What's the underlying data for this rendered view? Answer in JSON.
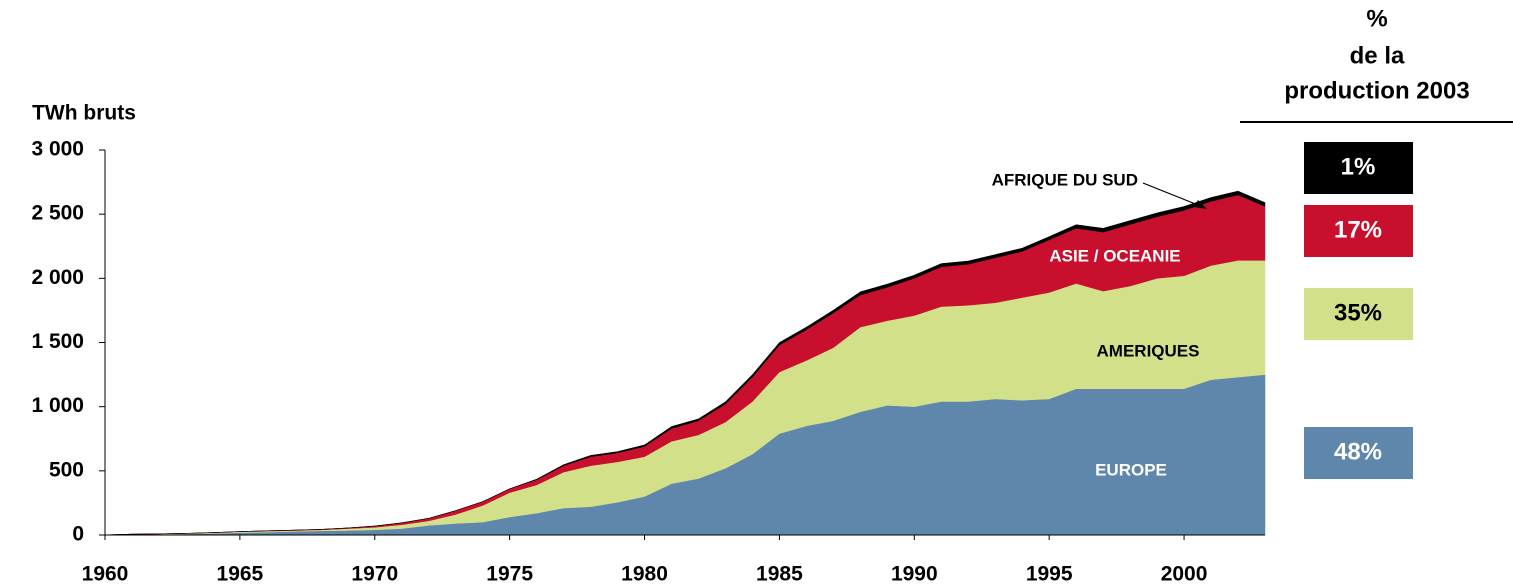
{
  "chart_data": {
    "type": "stacked_area",
    "y_axis_title": "TWh bruts",
    "x": [
      1960,
      1961,
      1962,
      1963,
      1964,
      1965,
      1966,
      1967,
      1968,
      1969,
      1970,
      1971,
      1972,
      1973,
      1974,
      1975,
      1976,
      1977,
      1978,
      1979,
      1980,
      1981,
      1982,
      1983,
      1984,
      1985,
      1986,
      1987,
      1988,
      1989,
      1990,
      1991,
      1992,
      1993,
      1994,
      1995,
      1996,
      1997,
      1998,
      1999,
      2000,
      2001,
      2002,
      2003
    ],
    "xlim": [
      1960,
      2003
    ],
    "xticks": [
      1960,
      1965,
      1970,
      1975,
      1980,
      1985,
      1990,
      1995,
      2000
    ],
    "ylim": [
      0,
      3000
    ],
    "yticks": [
      0,
      500,
      {
        "value": 1000,
        "label": "1 000"
      },
      {
        "value": 1500,
        "label": "1 500"
      },
      {
        "value": 2000,
        "label": "2 000"
      },
      {
        "value": 2500,
        "label": "2 500"
      },
      {
        "value": 3000,
        "label": "3 000"
      }
    ],
    "series": [
      {
        "name": "EUROPE",
        "color": "#5f86ab",
        "values": [
          0,
          2,
          5,
          8,
          12,
          18,
          22,
          28,
          32,
          35,
          40,
          50,
          75,
          90,
          100,
          140,
          170,
          210,
          220,
          255,
          300,
          400,
          440,
          520,
          630,
          790,
          850,
          890,
          960,
          1010,
          1000,
          1040,
          1040,
          1060,
          1050,
          1060,
          1140,
          1140,
          1140,
          1140,
          1140,
          1210,
          1230,
          1250
        ]
      },
      {
        "name": "AMERIQUES",
        "color": "#d3e08a",
        "values": [
          1,
          3,
          3,
          4,
          5,
          7,
          8,
          7,
          8,
          15,
          20,
          30,
          35,
          70,
          130,
          190,
          220,
          280,
          320,
          315,
          310,
          330,
          340,
          360,
          410,
          480,
          510,
          570,
          660,
          660,
          710,
          740,
          750,
          750,
          800,
          830,
          820,
          760,
          800,
          860,
          880,
          890,
          910,
          890
        ]
      },
      {
        "name": "ASIE / OCEANIE",
        "color": "#c8102e",
        "values": [
          0,
          2,
          1,
          1,
          2,
          2,
          3,
          3,
          4,
          5,
          10,
          15,
          20,
          30,
          30,
          30,
          40,
          50,
          70,
          70,
          80,
          100,
          110,
          140,
          190,
          210,
          240,
          270,
          250,
          260,
          290,
          310,
          320,
          350,
          360,
          410,
          430,
          460,
          480,
          480,
          510,
          500,
          510,
          420
        ]
      },
      {
        "name": "AFRIQUE DU SUD",
        "color": "#000000",
        "values": [
          0,
          0,
          0,
          0,
          0,
          0,
          0,
          0,
          0,
          0,
          0,
          0,
          0,
          0,
          0,
          0,
          5,
          8,
          10,
          10,
          12,
          15,
          15,
          18,
          20,
          20,
          20,
          22,
          25,
          25,
          25,
          25,
          25,
          25,
          25,
          25,
          28,
          30,
          30,
          30,
          30,
          30,
          30,
          30
        ]
      }
    ],
    "share_title": [
      "%",
      "de la",
      "production 2003"
    ],
    "shares": [
      48,
      35,
      17,
      1
    ],
    "share_labels": [
      "48%",
      "35%",
      "17%",
      "1%"
    ]
  }
}
